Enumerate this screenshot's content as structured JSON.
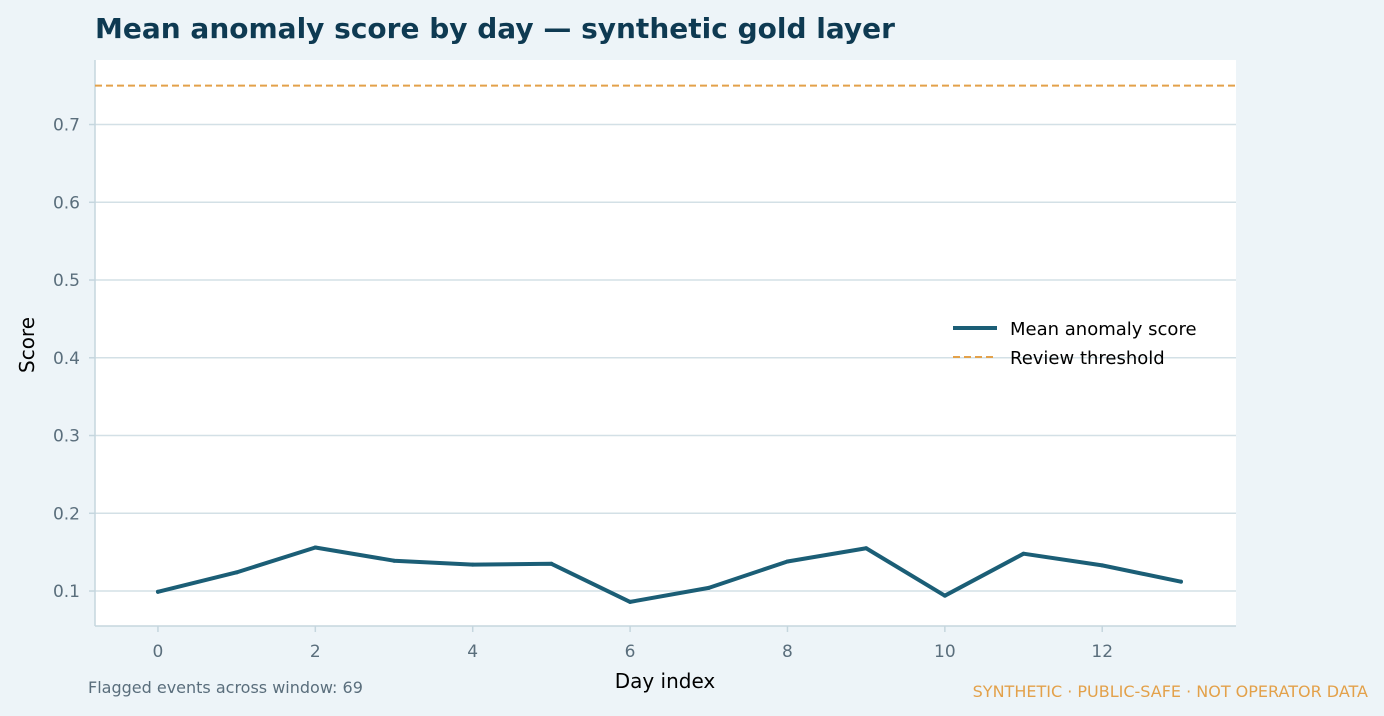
{
  "chart_data": {
    "type": "line",
    "title": "Mean anomaly score by day — synthetic gold layer",
    "xlabel": "Day index",
    "ylabel": "Score",
    "x": [
      0,
      1,
      2,
      3,
      4,
      5,
      6,
      7,
      8,
      9,
      10,
      11,
      12,
      13
    ],
    "series": [
      {
        "name": "Mean anomaly score",
        "values": [
          0.099,
          0.124,
          0.156,
          0.139,
          0.134,
          0.135,
          0.086,
          0.104,
          0.138,
          0.155,
          0.094,
          0.148,
          0.133,
          0.112
        ],
        "color": "#1b5e76"
      }
    ],
    "threshold": {
      "name": "Review threshold",
      "value": 0.75,
      "color": "#e3a14a"
    },
    "xlim": [
      -0.8,
      13.7
    ],
    "ylim": [
      0.055,
      0.783
    ],
    "xticks": [
      0,
      2,
      4,
      6,
      8,
      10,
      12
    ],
    "yticks": [
      0.1,
      0.2,
      0.3,
      0.4,
      0.5,
      0.6,
      0.7
    ],
    "ytick_labels": [
      "0.1",
      "0.2",
      "0.3",
      "0.4",
      "0.5",
      "0.6",
      "0.7"
    ],
    "xtick_labels": [
      "0",
      "2",
      "4",
      "6",
      "8",
      "10",
      "12"
    ],
    "grid": "horizontal",
    "legend_position": "center-right"
  },
  "footnote": "Flagged events across window: 69",
  "watermark": "SYNTHETIC · PUBLIC-SAFE · NOT OPERATOR DATA",
  "colors": {
    "background": "#edf4f8",
    "plot_background": "#ffffff",
    "grid": "#d3e0e6",
    "spine": "#c5d6de",
    "title": "#0e3a52",
    "tick": "#5a6e7c",
    "watermark": "#e3a14a"
  }
}
